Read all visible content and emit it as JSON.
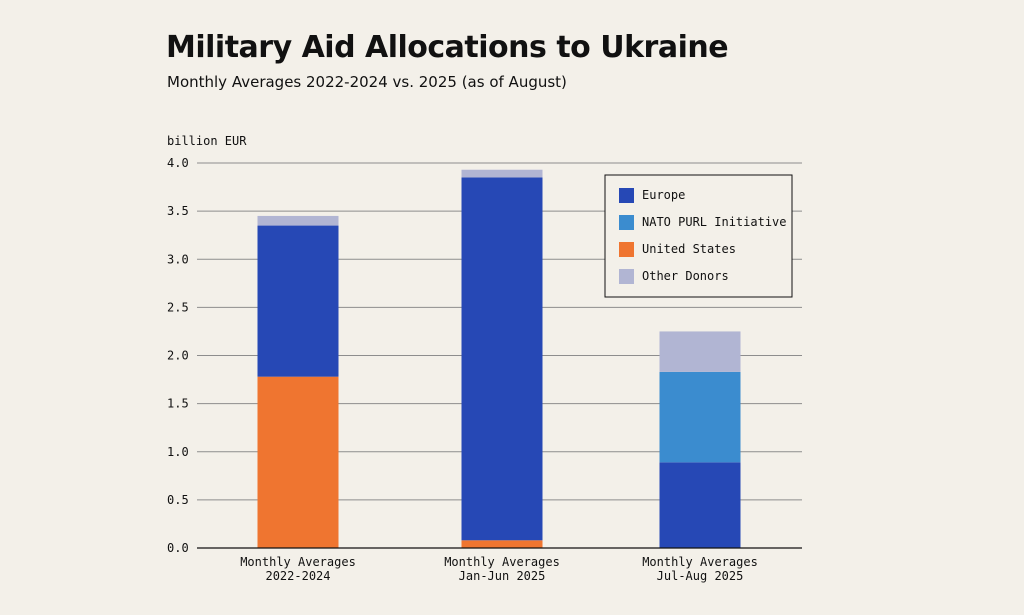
{
  "title": "Military Aid Allocations to Ukraine",
  "subtitle": "Monthly Averages 2022-2024 vs. 2025 (as of August)",
  "chart_data": {
    "type": "bar",
    "stacked": true,
    "ylabel": "billion EUR",
    "ylim": [
      0,
      4.0
    ],
    "yticks": [
      "0.0",
      "0.5",
      "1.0",
      "1.5",
      "2.0",
      "2.5",
      "3.0",
      "3.5",
      "4.0"
    ],
    "grid": true,
    "legend_position": "top-right",
    "categories": [
      [
        "Monthly Averages",
        "2022-2024"
      ],
      [
        "Monthly Averages",
        "Jan-Jun 2025"
      ],
      [
        "Monthly Averages",
        "Jul-Aug 2025"
      ]
    ],
    "series": [
      {
        "name": "United States",
        "color": "#ef7530",
        "values": [
          1.78,
          0.08,
          0
        ]
      },
      {
        "name": "Europe",
        "color": "#2648b5",
        "values": [
          1.57,
          3.77,
          0.89
        ]
      },
      {
        "name": "NATO PURL Initiative",
        "color": "#3b8ccf",
        "values": [
          0,
          0,
          0.94
        ]
      },
      {
        "name": "Other Donors",
        "color": "#b1b5d3",
        "values": [
          0.1,
          0.08,
          0.42
        ]
      }
    ],
    "legend_order": [
      "Europe",
      "NATO PURL Initiative",
      "United States",
      "Other Donors"
    ]
  }
}
